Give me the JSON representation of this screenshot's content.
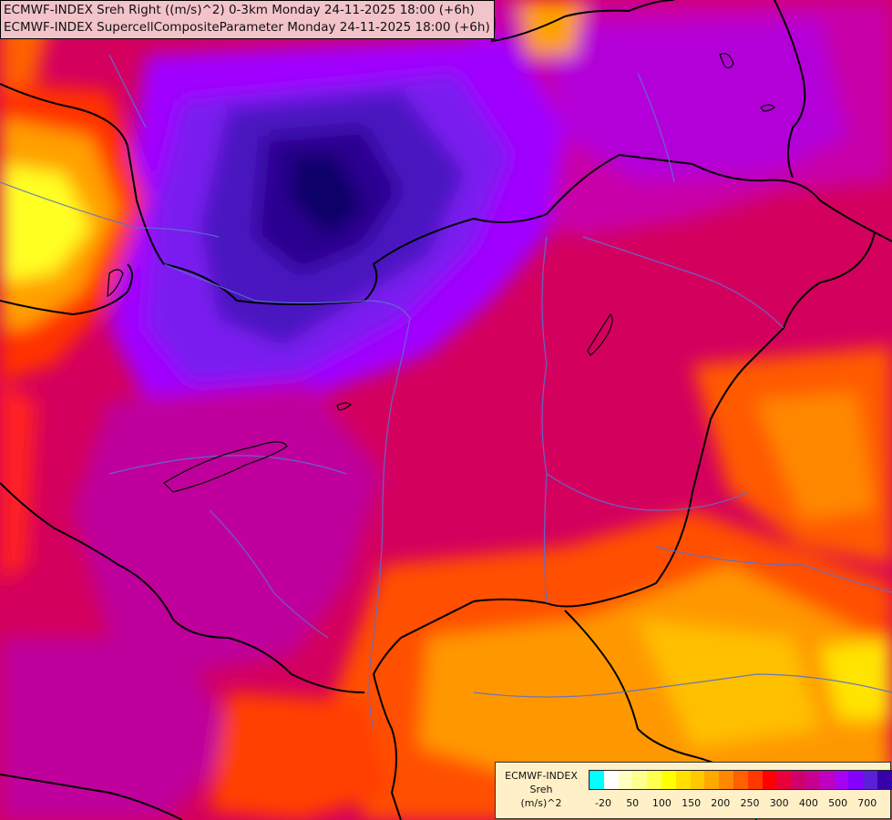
{
  "title_lines": [
    "ECMWF-INDEX Sreh Right ((m/s)^2) 0-3km Monday 24-11-2025 18:00 (+6h)",
    "ECMWF-INDEX SupercellCompositeParameter Monday 24-11-2025 18:00 (+6h)"
  ],
  "legend": {
    "model": "ECMWF-INDEX",
    "parameter": "Sreh",
    "unit": "(m/s)^2",
    "colors": [
      "#00ffff",
      "#ffffff",
      "#ffffc0",
      "#ffff90",
      "#ffff50",
      "#ffff00",
      "#ffe000",
      "#ffc800",
      "#ffa800",
      "#ff8800",
      "#ff6000",
      "#ff3800",
      "#ff0000",
      "#e8003c",
      "#d0006a",
      "#c80090",
      "#c000c0",
      "#a800f0",
      "#8400ff",
      "#5a20d8",
      "#3800a8",
      "#000070"
    ],
    "tick_labels": [
      "-20",
      "50",
      "100",
      "150",
      "200",
      "250",
      "300",
      "400",
      "500",
      "700"
    ]
  }
}
